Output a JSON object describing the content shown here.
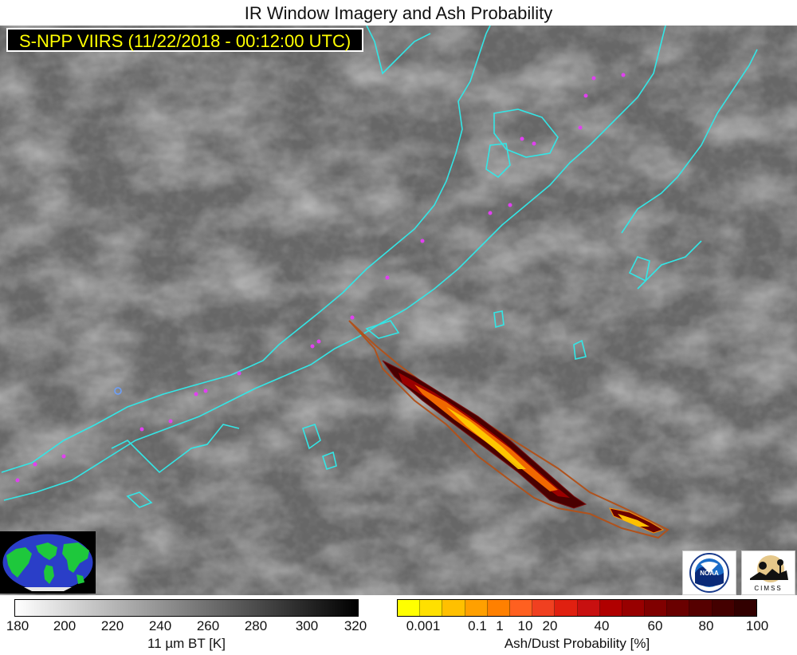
{
  "title": "IR Window Imagery and Ash Probability",
  "satellite_label": "S-NPP VIIRS (11/22/2018 - 00:12:00 UTC)",
  "colors": {
    "coastline": "#33e6e6",
    "volcano_marker": "#e040f0",
    "ash_outline": "#b0521c",
    "label_text": "#ffff00"
  },
  "bt_colorbar": {
    "title": "11 µm BT [K]",
    "ticks": [
      "180",
      "200",
      "220",
      "240",
      "260",
      "280",
      "300",
      "320"
    ]
  },
  "ash_colorbar": {
    "title": "Ash/Dust Probability [%]",
    "ticks": [
      "0.001",
      "0.1",
      "1",
      "10",
      "20",
      "40",
      "60",
      "80",
      "100"
    ],
    "colors": [
      "#ffff00",
      "#ffe000",
      "#ffc000",
      "#ffa000",
      "#ff8000",
      "#ff6020",
      "#f04020",
      "#e02010",
      "#c81010",
      "#b00000",
      "#980000",
      "#800000",
      "#6a0000",
      "#560000",
      "#440000",
      "#320000"
    ]
  },
  "logos": {
    "noaa": "NOAA",
    "cimss": "CIMSS"
  }
}
